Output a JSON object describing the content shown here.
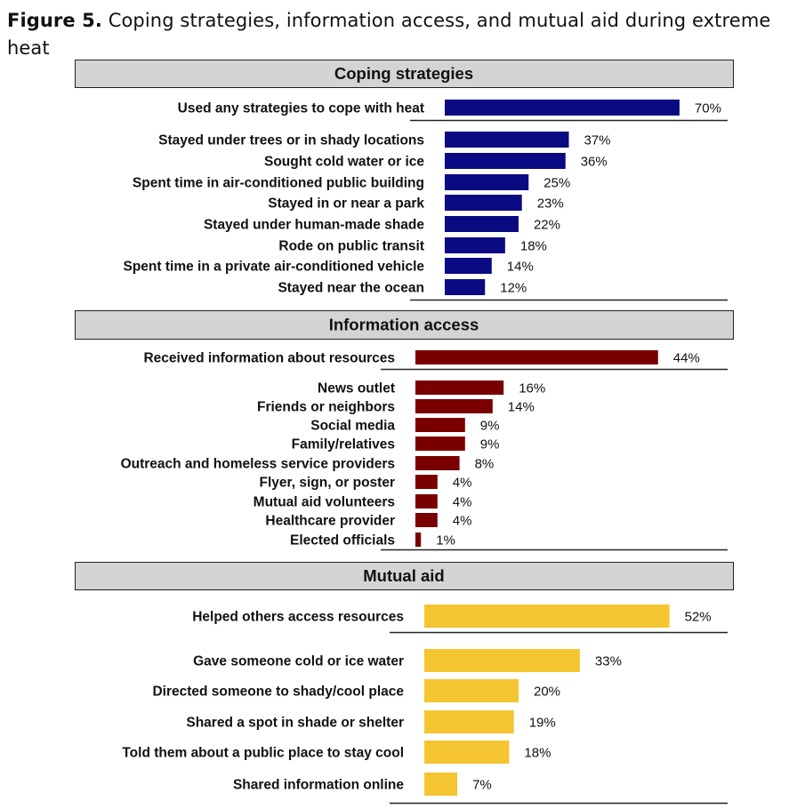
{
  "figure": {
    "label": "Figure 5.",
    "caption": "Coping strategies, information access, and mutual aid during extreme heat"
  },
  "colors": {
    "coping": "#0a0a82",
    "information": "#7a0000",
    "mutual": "#f4c531",
    "header_fill": "#d4d4d4"
  },
  "chart_data": [
    {
      "type": "bar",
      "orientation": "horizontal",
      "title": "Coping strategies",
      "xlim": [
        0,
        100
      ],
      "summary": {
        "category": "Used any strategies to cope with heat",
        "value": 70,
        "label": "70%"
      },
      "categories": [
        "Stayed under trees or in shady locations",
        "Sought cold water or ice",
        "Spent time in air-conditioned public building",
        "Stayed in or near a park",
        "Stayed under human-made shade",
        "Rode on public transit",
        "Spent time in a private air-conditioned vehicle",
        "Stayed near the ocean"
      ],
      "values": [
        37,
        36,
        25,
        23,
        22,
        18,
        14,
        12
      ],
      "labels": [
        "37%",
        "36%",
        "25%",
        "23%",
        "22%",
        "18%",
        "14%",
        "12%"
      ]
    },
    {
      "type": "bar",
      "orientation": "horizontal",
      "title": "Information access",
      "xlim": [
        0,
        100
      ],
      "summary": {
        "category": "Received information about resources",
        "value": 44,
        "label": "44%"
      },
      "categories": [
        "News outlet",
        "Friends or neighbors",
        "Social media",
        "Family/relatives",
        "Outreach and homeless service providers",
        "Flyer, sign, or poster",
        "Mutual aid volunteers",
        "Healthcare provider",
        "Elected officials"
      ],
      "values": [
        16,
        14,
        9,
        9,
        8,
        4,
        4,
        4,
        1
      ],
      "labels": [
        "16%",
        "14%",
        "9%",
        "9%",
        "8%",
        "4%",
        "4%",
        "4%",
        "1%"
      ]
    },
    {
      "type": "bar",
      "orientation": "horizontal",
      "title": "Mutual aid",
      "xlim": [
        0,
        100
      ],
      "summary": {
        "category": "Helped others access resources",
        "value": 52,
        "label": "52%"
      },
      "categories": [
        "Gave someone cold or ice water",
        "Directed someone to shady/cool place",
        "Shared a spot in shade or shelter",
        "Told them about a public place to stay cool",
        "Shared information online"
      ],
      "values": [
        33,
        20,
        19,
        18,
        7
      ],
      "labels": [
        "33%",
        "20%",
        "19%",
        "18%",
        "7%"
      ]
    }
  ]
}
